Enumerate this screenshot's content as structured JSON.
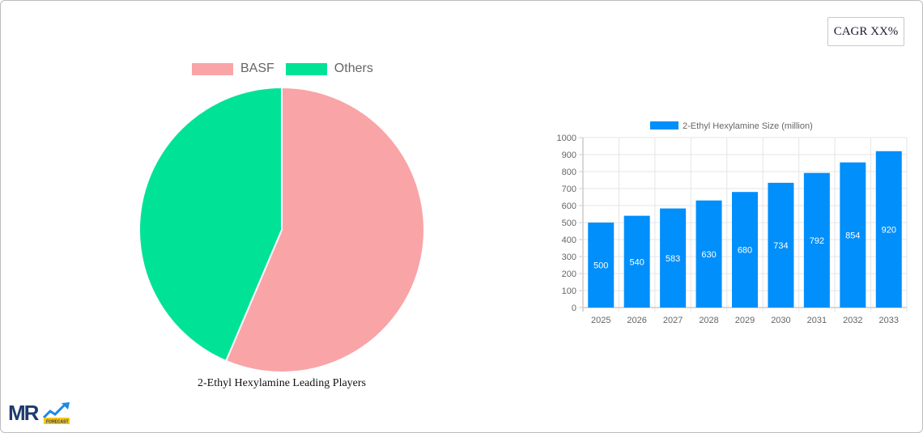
{
  "cagr_badge": {
    "label": "CAGR XX%"
  },
  "pie": {
    "legend": [
      {
        "label": "BASF",
        "color": "#f9a4a6"
      },
      {
        "label": "Others",
        "color": "#00e396"
      }
    ],
    "title": "2-Ethyl Hexylamine Leading Players"
  },
  "bar": {
    "legend_label": "2-Ethyl Hexylamine Size (million)",
    "color": "#008ffb"
  },
  "logo": {
    "text": "MR",
    "tag": "FORECAST"
  },
  "chart_data": [
    {
      "type": "pie",
      "title": "2-Ethyl Hexylamine Leading Players",
      "categories": [
        "BASF",
        "Others"
      ],
      "values": [
        56.4,
        43.6
      ],
      "colors": [
        "#f9a4a6",
        "#00e396"
      ],
      "legend_position": "top"
    },
    {
      "type": "bar",
      "title": "",
      "categories": [
        "2025",
        "2026",
        "2027",
        "2028",
        "2029",
        "2030",
        "2031",
        "2032",
        "2033"
      ],
      "series": [
        {
          "name": "2-Ethyl Hexylamine Size (million)",
          "values": [
            500,
            540,
            583,
            630,
            680,
            734,
            792,
            854,
            920
          ]
        }
      ],
      "xlabel": "",
      "ylabel": "",
      "ylim": [
        0,
        1000
      ],
      "yticks": [
        0,
        100,
        200,
        300,
        400,
        500,
        600,
        700,
        800,
        900,
        1000
      ],
      "grid": true,
      "data_labels": true,
      "legend_position": "top"
    }
  ]
}
